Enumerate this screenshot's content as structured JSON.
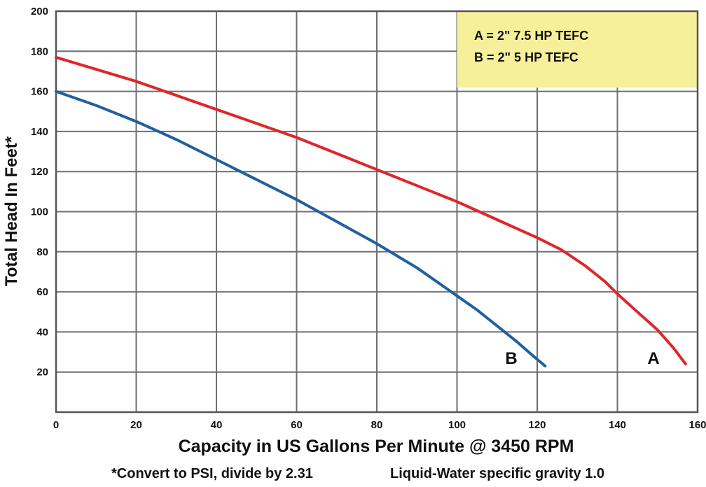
{
  "chart_data": {
    "type": "line",
    "xlabel": "Capacity in US Gallons Per Minute @ 3450 RPM",
    "ylabel": "Total Head In Feet*",
    "xlim": [
      0,
      160
    ],
    "ylim": [
      0,
      200
    ],
    "x_ticks": [
      0,
      20,
      40,
      60,
      80,
      100,
      120,
      140,
      160
    ],
    "y_ticks": [
      20,
      40,
      60,
      80,
      100,
      120,
      140,
      160,
      180,
      200
    ],
    "grid": true,
    "legend": {
      "placement": "top-right",
      "entries": [
        "A = 2\"  7.5 HP TEFC",
        "B = 2\"  5 HP TEFC"
      ],
      "background": "#f7f09a"
    },
    "footnotes": {
      "left": "*Convert to PSI, divide by 2.31",
      "right": "Liquid-Water specific gravity 1.0"
    },
    "series": [
      {
        "name": "A",
        "label": "A",
        "color": "#e0262b",
        "x": [
          0,
          10,
          20,
          30,
          40,
          50,
          60,
          70,
          80,
          90,
          100,
          110,
          120,
          126,
          132,
          137,
          140,
          145,
          150,
          154,
          157
        ],
        "y": [
          177,
          171,
          165,
          158,
          151,
          144,
          137,
          129,
          121,
          113,
          105,
          96,
          87,
          81,
          73,
          65,
          59,
          50,
          41,
          32,
          24
        ]
      },
      {
        "name": "B",
        "label": "B",
        "color": "#21609e",
        "x": [
          0,
          10,
          20,
          30,
          40,
          50,
          60,
          70,
          80,
          90,
          100,
          105,
          110,
          115,
          119,
          122
        ],
        "y": [
          160,
          153,
          145,
          136,
          126,
          116,
          106,
          95,
          84,
          72,
          58,
          51,
          43,
          35,
          28,
          23
        ]
      }
    ]
  }
}
